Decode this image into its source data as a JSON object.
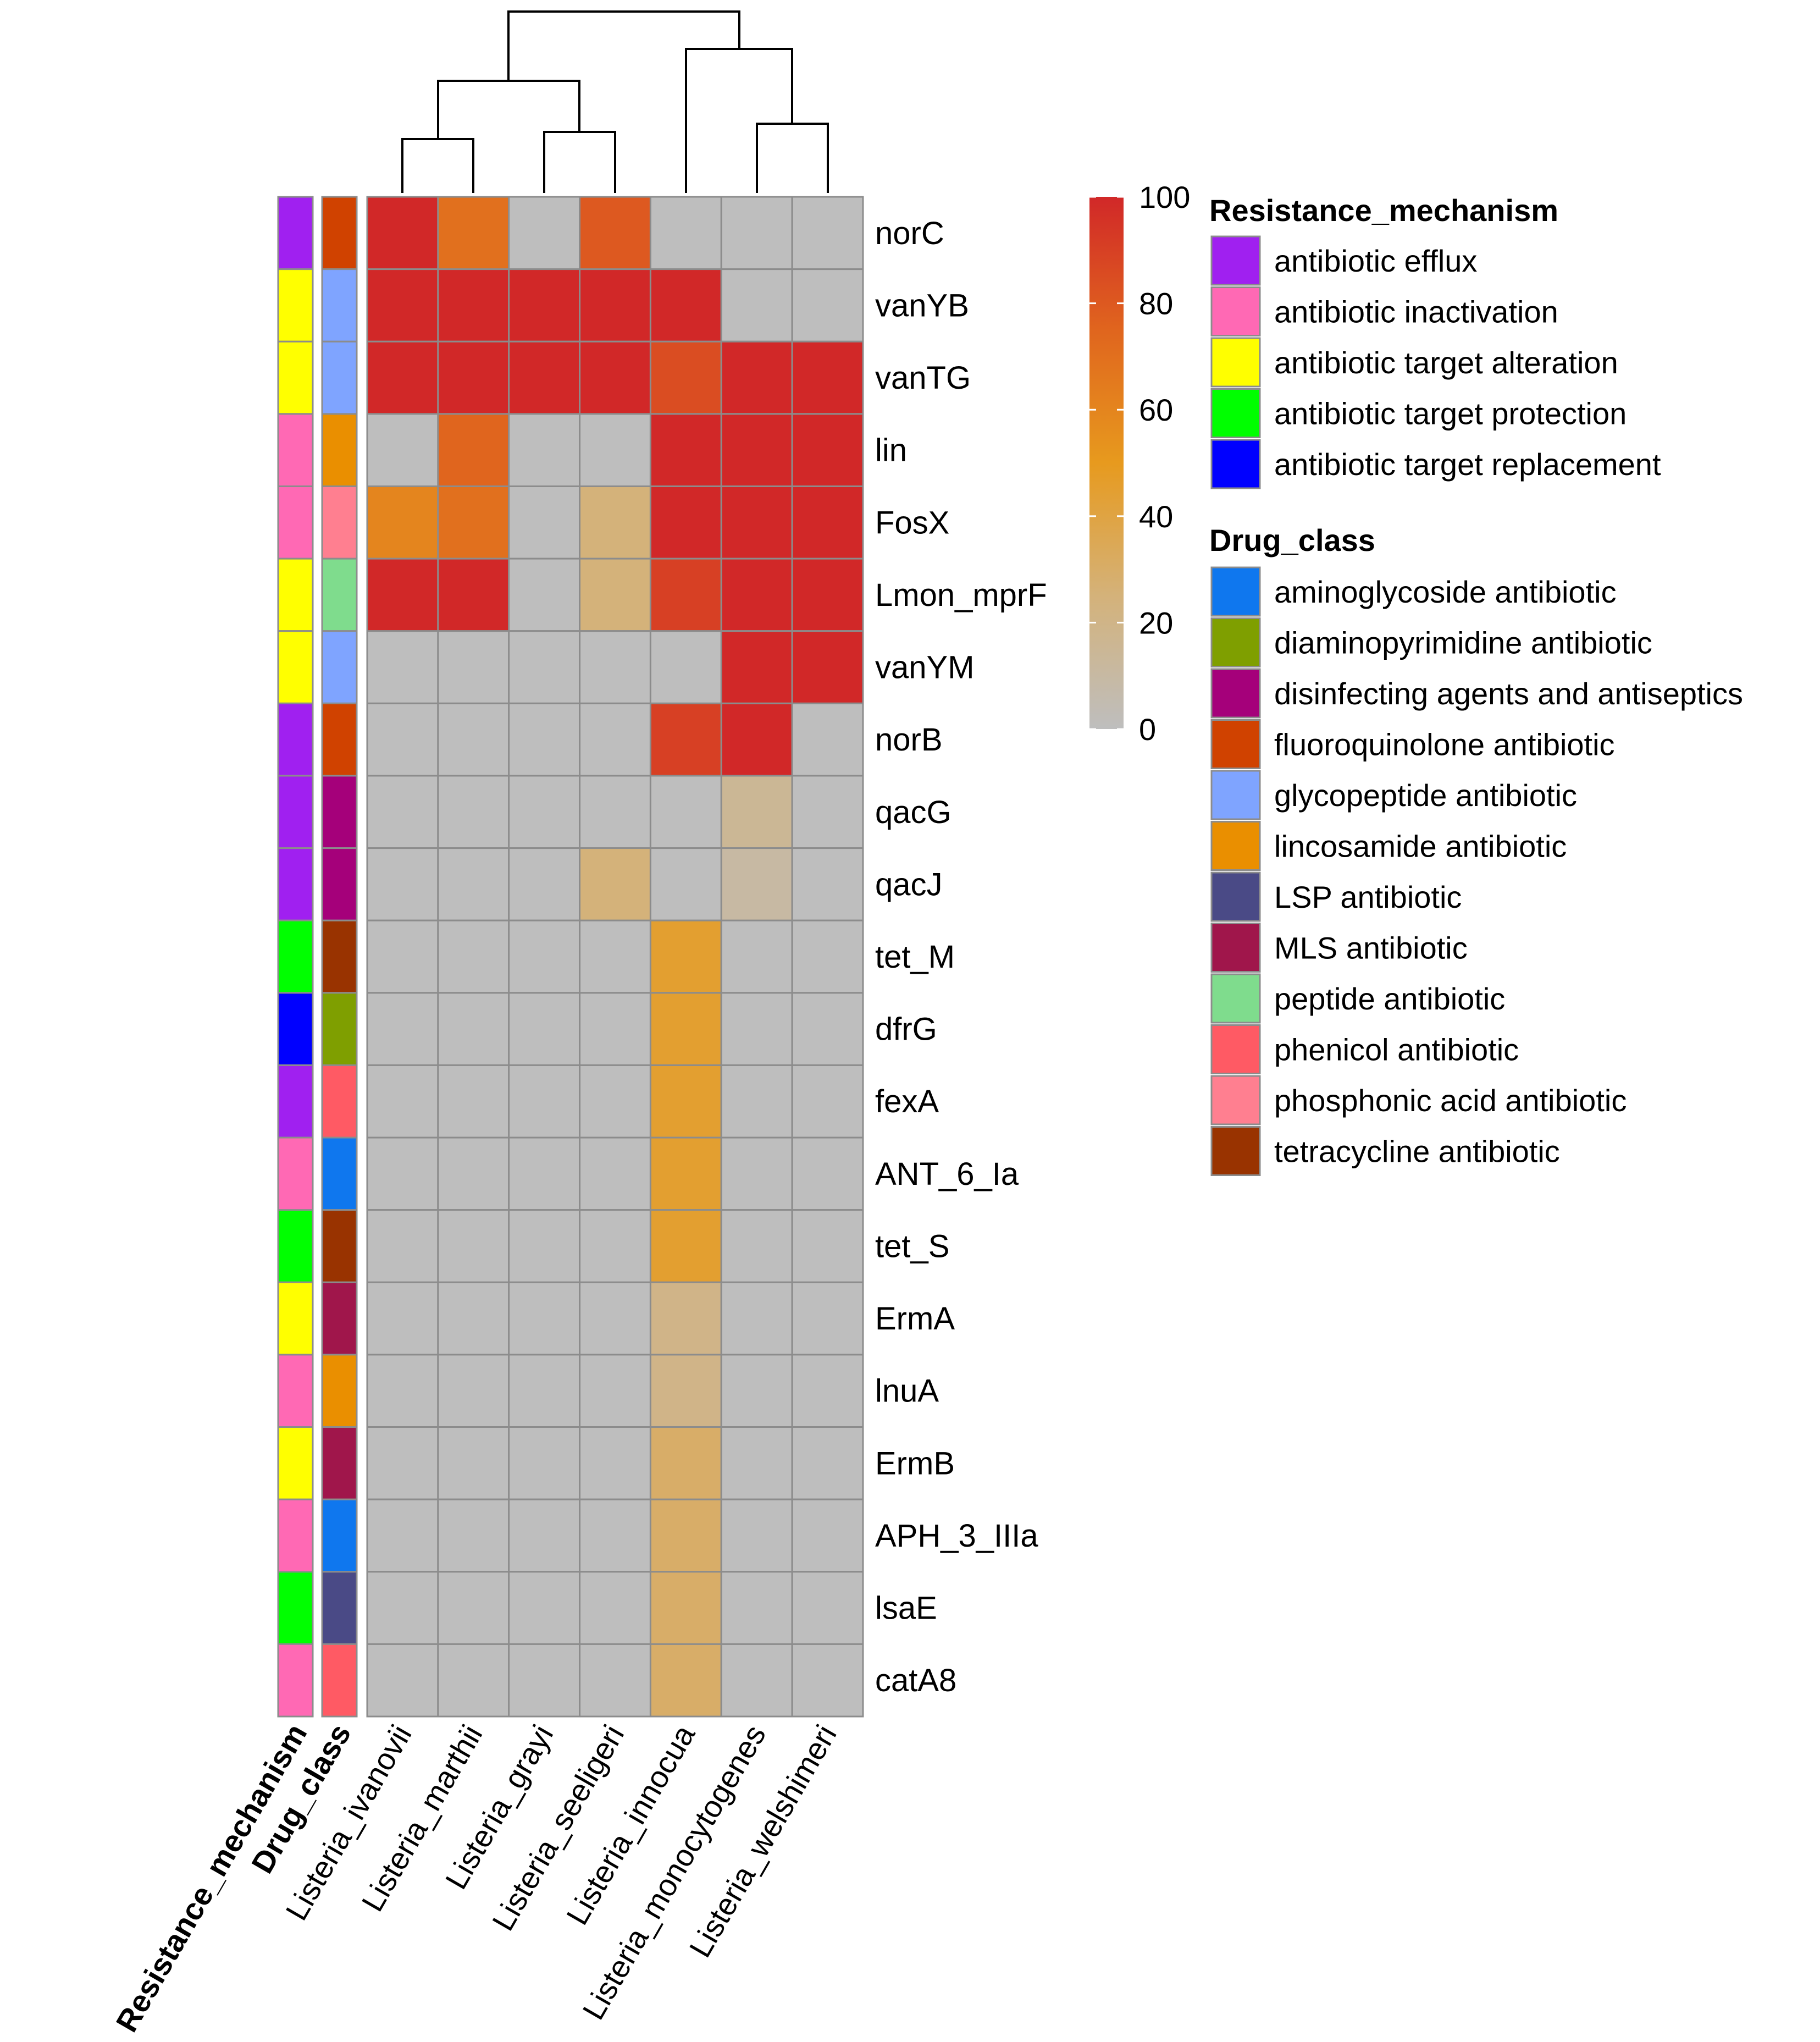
{
  "chart_data": {
    "type": "heatmap",
    "title": "",
    "columns": [
      "Listeria_ivanovii",
      "Listeria_marthii",
      "Listeria_grayi",
      "Listeria_seeligeri",
      "Listeria_innocua",
      "Listeria_monocytogenes",
      "Listeria_welshimeri"
    ],
    "rows": [
      "norC",
      "vanYB",
      "vanTG",
      "lin",
      "FosX",
      "Lmon_mprF",
      "vanYM",
      "norB",
      "qacG",
      "qacJ",
      "tet_M",
      "dfrG",
      "fexA",
      "ANT_6_Ia",
      "tet_S",
      "ErmA",
      "lnuA",
      "ErmB",
      "APH_3_IIIa",
      "lsaE",
      "catA8"
    ],
    "values": [
      [
        100,
        70,
        0,
        80,
        0,
        0,
        0
      ],
      [
        100,
        100,
        100,
        100,
        100,
        0,
        0
      ],
      [
        100,
        100,
        100,
        100,
        85,
        100,
        100
      ],
      [
        0,
        75,
        0,
        0,
        100,
        100,
        100
      ],
      [
        60,
        70,
        0,
        25,
        100,
        100,
        100
      ],
      [
        100,
        100,
        0,
        25,
        90,
        100,
        100
      ],
      [
        0,
        0,
        0,
        0,
        0,
        100,
        100
      ],
      [
        0,
        0,
        0,
        0,
        90,
        100,
        0
      ],
      [
        0,
        0,
        0,
        0,
        0,
        15,
        0
      ],
      [
        0,
        0,
        0,
        25,
        0,
        10,
        0
      ],
      [
        0,
        0,
        0,
        0,
        45,
        0,
        0
      ],
      [
        0,
        0,
        0,
        0,
        45,
        0,
        0
      ],
      [
        0,
        0,
        0,
        0,
        45,
        0,
        0
      ],
      [
        0,
        0,
        0,
        0,
        45,
        0,
        0
      ],
      [
        0,
        0,
        0,
        0,
        45,
        0,
        0
      ],
      [
        0,
        0,
        0,
        0,
        20,
        0,
        0
      ],
      [
        0,
        0,
        0,
        0,
        20,
        0,
        0
      ],
      [
        0,
        0,
        0,
        0,
        30,
        0,
        0
      ],
      [
        0,
        0,
        0,
        0,
        30,
        0,
        0
      ],
      [
        0,
        0,
        0,
        0,
        30,
        0,
        0
      ],
      [
        0,
        0,
        0,
        0,
        30,
        0,
        0
      ]
    ],
    "color_scale": {
      "min": 0,
      "max": 100,
      "ticks": [
        "100",
        "80",
        "60",
        "40",
        "20",
        "0"
      ],
      "stops": [
        {
          "value": 0,
          "color": "#BEBEBE"
        },
        {
          "value": 25,
          "color": "#D4B27A"
        },
        {
          "value": 50,
          "color": "#E79A1E"
        },
        {
          "value": 75,
          "color": "#E0651E"
        },
        {
          "value": 100,
          "color": "#D12828"
        }
      ]
    },
    "annotations": {
      "resistance_label": "Resistance_mechanism",
      "drug_label": "Drug_class",
      "row_resistance": [
        "antibiotic efflux",
        "antibiotic target alteration",
        "antibiotic target alteration",
        "antibiotic inactivation",
        "antibiotic inactivation",
        "antibiotic target alteration",
        "antibiotic target alteration",
        "antibiotic efflux",
        "antibiotic efflux",
        "antibiotic efflux",
        "antibiotic target protection",
        "antibiotic target replacement",
        "antibiotic efflux",
        "antibiotic inactivation",
        "antibiotic target protection",
        "antibiotic target alteration",
        "antibiotic inactivation",
        "antibiotic target alteration",
        "antibiotic inactivation",
        "antibiotic target protection",
        "antibiotic inactivation"
      ],
      "row_drug": [
        "fluoroquinolone antibiotic",
        "glycopeptide antibiotic",
        "glycopeptide antibiotic",
        "lincosamide antibiotic",
        "phosphonic acid antibiotic",
        "peptide antibiotic",
        "glycopeptide antibiotic",
        "fluoroquinolone antibiotic",
        "disinfecting agents and antiseptics",
        "disinfecting agents and antiseptics",
        "tetracycline antibiotic",
        "diaminopyrimidine antibiotic",
        "phenicol antibiotic",
        "aminoglycoside antibiotic",
        "tetracycline antibiotic",
        "MLS antibiotic",
        "lincosamide antibiotic",
        "MLS antibiotic",
        "aminoglycoside antibiotic",
        "LSP antibiotic",
        "phenicol antibiotic"
      ]
    },
    "legend": {
      "resistance_title": "Resistance_mechanism",
      "resistance": [
        {
          "label": "antibiotic efflux",
          "color": "#A020F0"
        },
        {
          "label": "antibiotic inactivation",
          "color": "#FF69B4"
        },
        {
          "label": "antibiotic target alteration",
          "color": "#FFFF00"
        },
        {
          "label": "antibiotic target protection",
          "color": "#00FF00"
        },
        {
          "label": "antibiotic target replacement",
          "color": "#0000FF"
        }
      ],
      "drug_title": "Drug_class",
      "drug": [
        {
          "label": "aminoglycoside antibiotic",
          "color": "#0F77EE"
        },
        {
          "label": "diaminopyrimidine antibiotic",
          "color": "#7F9F00"
        },
        {
          "label": "disinfecting agents and antiseptics",
          "color": "#A5007A"
        },
        {
          "label": "fluoroquinolone antibiotic",
          "color": "#D04200"
        },
        {
          "label": "glycopeptide antibiotic",
          "color": "#7FA4FF"
        },
        {
          "label": "lincosamide antibiotic",
          "color": "#EA8F00"
        },
        {
          "label": "LSP antibiotic",
          "color": "#4A4A86"
        },
        {
          "label": "MLS antibiotic",
          "color": "#A0164B"
        },
        {
          "label": "peptide antibiotic",
          "color": "#7FDC8D"
        },
        {
          "label": "phenicol antibiotic",
          "color": "#FF5A64"
        },
        {
          "label": "phosphonic acid antibiotic",
          "color": "#FF7F90"
        },
        {
          "label": "tetracycline antibiotic",
          "color": "#993300"
        }
      ]
    },
    "dendrogram": "hierarchical clustering of columns: ((Listeria_ivanovii, Listeria_marthii), (Listeria_grayi, Listeria_seeligeri)), (Listeria_innocua, (Listeria_monocytogenes, Listeria_welshimeri))"
  }
}
